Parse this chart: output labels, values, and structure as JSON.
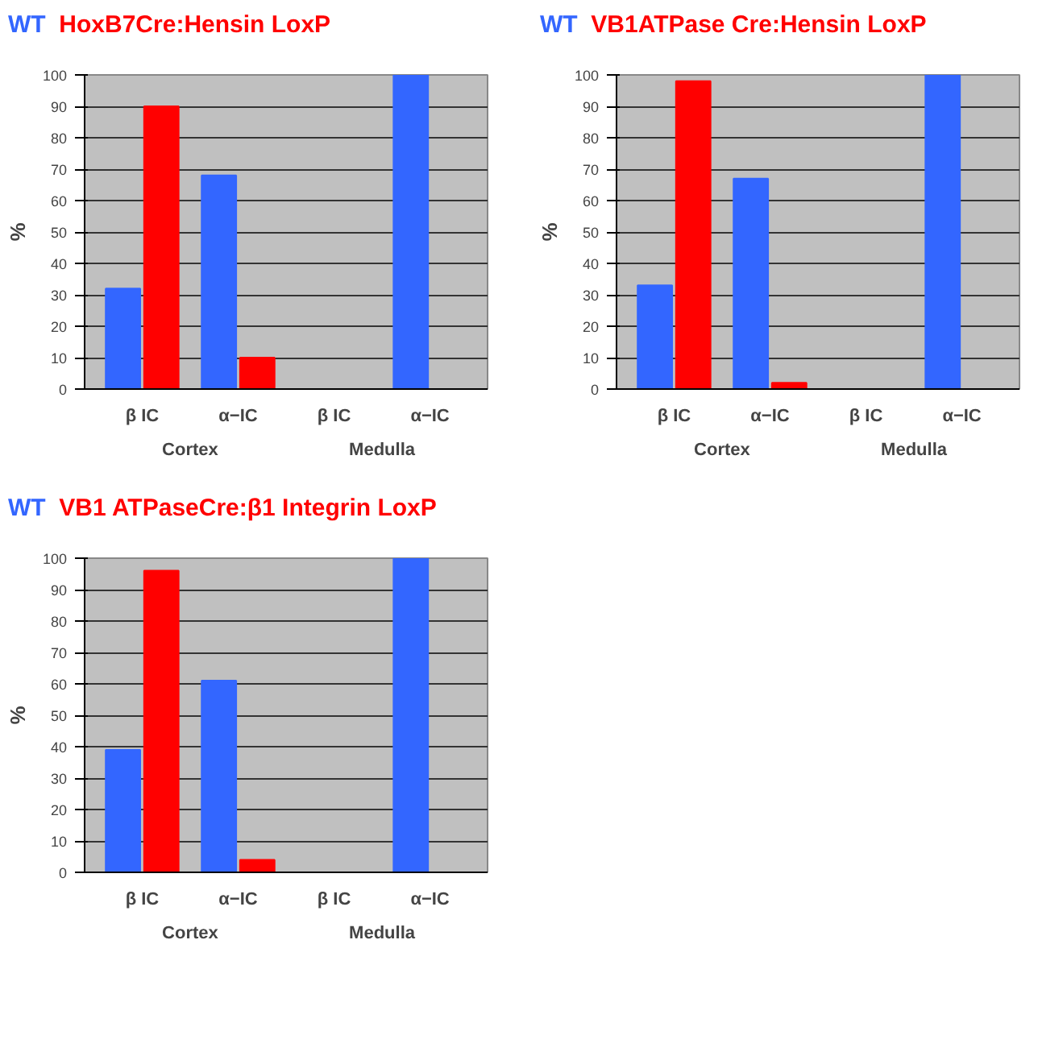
{
  "chart_data": [
    {
      "type": "bar",
      "categories": [
        "β IC",
        "α−IC",
        "β IC",
        "α−IC"
      ],
      "ylabel": "%",
      "annotations": [
        "Cortex",
        "Medulla"
      ],
      "ylim": [
        0,
        100
      ],
      "yticks": [
        0,
        10,
        20,
        30,
        40,
        50,
        60,
        70,
        80,
        90,
        100
      ],
      "grid": "y",
      "legend": "top",
      "series": [
        {
          "name": "WT",
          "color": "#3366ff",
          "values": [
            32,
            68,
            0,
            100
          ]
        },
        {
          "name": "HoxB7Cre:Hensin LoxP",
          "color": "#ff0000",
          "values": [
            90,
            10,
            0,
            0
          ]
        }
      ]
    },
    {
      "type": "bar",
      "categories": [
        "β IC",
        "α−IC",
        "β IC",
        "α−IC"
      ],
      "ylabel": "%",
      "annotations": [
        "Cortex",
        "Medulla"
      ],
      "ylim": [
        0,
        100
      ],
      "yticks": [
        0,
        10,
        20,
        30,
        40,
        50,
        60,
        70,
        80,
        90,
        100
      ],
      "grid": "y",
      "legend": "top",
      "series": [
        {
          "name": "WT",
          "color": "#3366ff",
          "values": [
            33,
            67,
            0,
            100
          ]
        },
        {
          "name": "VB1ATPase Cre:Hensin LoxP",
          "color": "#ff0000",
          "values": [
            98,
            2,
            0,
            0
          ]
        }
      ]
    },
    {
      "type": "bar",
      "categories": [
        "β IC",
        "α−IC",
        "β IC",
        "α−IC"
      ],
      "ylabel": "%",
      "annotations": [
        "Cortex",
        "Medulla"
      ],
      "ylim": [
        0,
        100
      ],
      "yticks": [
        0,
        10,
        20,
        30,
        40,
        50,
        60,
        70,
        80,
        90,
        100
      ],
      "grid": "y",
      "legend": "top",
      "series": [
        {
          "name": "WT",
          "color": "#3366ff",
          "values": [
            39,
            61,
            0,
            100
          ]
        },
        {
          "name": "VB1 ATPaseCre:β1 Integrin LoxP",
          "color": "#ff0000",
          "values": [
            96,
            4,
            0,
            0
          ]
        }
      ]
    }
  ]
}
